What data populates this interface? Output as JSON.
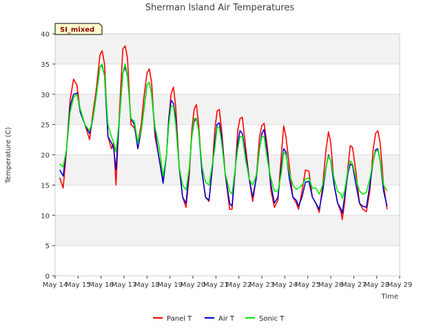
{
  "chart_data": {
    "type": "line",
    "title": "Sherman Island Air Temperatures",
    "xlabel": "Time",
    "ylabel": "Temperature (C)",
    "badge": "SI_mixed",
    "x_tick_labels": [
      "May 14",
      "May 15",
      "May 16",
      "May 17",
      "May 18",
      "May 19",
      "May 20",
      "May 21",
      "May 22",
      "May 23",
      "May 24",
      "May 25",
      "May 26",
      "May 27",
      "May 28",
      "May 29"
    ],
    "y_ticks": [
      0,
      5,
      10,
      15,
      20,
      25,
      30,
      35,
      40
    ],
    "xlim": [
      0,
      15
    ],
    "ylim": [
      0,
      40
    ],
    "grid": true,
    "legend_position": "bottom-center",
    "series": [
      {
        "name": "Panel T",
        "color": "#ff0000",
        "points": [
          [
            0.2,
            16.2
          ],
          [
            0.35,
            14.5
          ],
          [
            0.5,
            21
          ],
          [
            0.65,
            29
          ],
          [
            0.8,
            32.5
          ],
          [
            0.95,
            31.5
          ],
          [
            1.1,
            27
          ],
          [
            1.3,
            25
          ],
          [
            1.5,
            22.5
          ],
          [
            1.65,
            27
          ],
          [
            1.8,
            31
          ],
          [
            1.95,
            36.5
          ],
          [
            2.05,
            37.2
          ],
          [
            2.15,
            35
          ],
          [
            2.3,
            23
          ],
          [
            2.45,
            21
          ],
          [
            2.55,
            22
          ],
          [
            2.65,
            15
          ],
          [
            2.8,
            27
          ],
          [
            2.95,
            37.5
          ],
          [
            3.05,
            38
          ],
          [
            3.15,
            36
          ],
          [
            3.3,
            25
          ],
          [
            3.45,
            24.5
          ],
          [
            3.6,
            22
          ],
          [
            3.75,
            25
          ],
          [
            3.85,
            29
          ],
          [
            4.0,
            33.5
          ],
          [
            4.1,
            34.2
          ],
          [
            4.2,
            32
          ],
          [
            4.35,
            23
          ],
          [
            4.5,
            20
          ],
          [
            4.7,
            16
          ],
          [
            4.85,
            20
          ],
          [
            4.95,
            26
          ],
          [
            5.05,
            30
          ],
          [
            5.15,
            31.2
          ],
          [
            5.25,
            28
          ],
          [
            5.4,
            18
          ],
          [
            5.55,
            13
          ],
          [
            5.7,
            11.3
          ],
          [
            5.85,
            17
          ],
          [
            5.95,
            24
          ],
          [
            6.05,
            27.5
          ],
          [
            6.15,
            28.3
          ],
          [
            6.25,
            25
          ],
          [
            6.4,
            17
          ],
          [
            6.55,
            13
          ],
          [
            6.7,
            12.3
          ],
          [
            6.85,
            18
          ],
          [
            6.95,
            24
          ],
          [
            7.05,
            27.2
          ],
          [
            7.15,
            27.5
          ],
          [
            7.25,
            24
          ],
          [
            7.4,
            17
          ],
          [
            7.6,
            11
          ],
          [
            7.7,
            11
          ],
          [
            7.85,
            18
          ],
          [
            7.95,
            24
          ],
          [
            8.05,
            26
          ],
          [
            8.15,
            26.2
          ],
          [
            8.3,
            21
          ],
          [
            8.45,
            16
          ],
          [
            8.6,
            12.3
          ],
          [
            8.75,
            16
          ],
          [
            8.9,
            23
          ],
          [
            9.0,
            24.8
          ],
          [
            9.1,
            25.2
          ],
          [
            9.25,
            21
          ],
          [
            9.4,
            14
          ],
          [
            9.55,
            11.3
          ],
          [
            9.7,
            12.5
          ],
          [
            9.85,
            20
          ],
          [
            9.95,
            24.8
          ],
          [
            10.05,
            23
          ],
          [
            10.2,
            18
          ],
          [
            10.35,
            13
          ],
          [
            10.5,
            12
          ],
          [
            10.6,
            11
          ],
          [
            10.75,
            14
          ],
          [
            10.9,
            17.5
          ],
          [
            11.05,
            17.3
          ],
          [
            11.2,
            13
          ],
          [
            11.35,
            12
          ],
          [
            11.5,
            10.5
          ],
          [
            11.65,
            15
          ],
          [
            11.8,
            21
          ],
          [
            11.9,
            23.8
          ],
          [
            12.0,
            22
          ],
          [
            12.15,
            15
          ],
          [
            12.3,
            12
          ],
          [
            12.45,
            10.5
          ],
          [
            12.5,
            9.3
          ],
          [
            12.6,
            12
          ],
          [
            12.75,
            18
          ],
          [
            12.85,
            21.5
          ],
          [
            12.95,
            21.2
          ],
          [
            13.1,
            17
          ],
          [
            13.25,
            12
          ],
          [
            13.4,
            11
          ],
          [
            13.55,
            10.6
          ],
          [
            13.7,
            14
          ],
          [
            13.85,
            21
          ],
          [
            13.95,
            23.5
          ],
          [
            14.05,
            24
          ],
          [
            14.15,
            22
          ],
          [
            14.3,
            15
          ],
          [
            14.45,
            11
          ]
        ]
      },
      {
        "name": "Air T",
        "color": "#0000cc",
        "points": [
          [
            0.2,
            17.5
          ],
          [
            0.35,
            16.5
          ],
          [
            0.5,
            21
          ],
          [
            0.65,
            28
          ],
          [
            0.8,
            30
          ],
          [
            0.95,
            30.2
          ],
          [
            1.1,
            27
          ],
          [
            1.3,
            25
          ],
          [
            1.5,
            23.5
          ],
          [
            1.65,
            26
          ],
          [
            1.8,
            30
          ],
          [
            1.95,
            34.5
          ],
          [
            2.05,
            34.8
          ],
          [
            2.15,
            33
          ],
          [
            2.3,
            23
          ],
          [
            2.45,
            22
          ],
          [
            2.55,
            21
          ],
          [
            2.65,
            17.5
          ],
          [
            2.8,
            26
          ],
          [
            2.95,
            33.5
          ],
          [
            3.05,
            34.5
          ],
          [
            3.15,
            33
          ],
          [
            3.3,
            26
          ],
          [
            3.45,
            25
          ],
          [
            3.6,
            21
          ],
          [
            3.75,
            24
          ],
          [
            3.85,
            27
          ],
          [
            4.0,
            31.5
          ],
          [
            4.1,
            32
          ],
          [
            4.2,
            30
          ],
          [
            4.35,
            24
          ],
          [
            4.5,
            20
          ],
          [
            4.7,
            15.3
          ],
          [
            4.85,
            20
          ],
          [
            4.95,
            26
          ],
          [
            5.05,
            29
          ],
          [
            5.15,
            28.5
          ],
          [
            5.25,
            26
          ],
          [
            5.4,
            18
          ],
          [
            5.55,
            13
          ],
          [
            5.7,
            12
          ],
          [
            5.85,
            18
          ],
          [
            5.95,
            23
          ],
          [
            6.05,
            25.5
          ],
          [
            6.15,
            26
          ],
          [
            6.25,
            24
          ],
          [
            6.4,
            17
          ],
          [
            6.55,
            13
          ],
          [
            6.7,
            12.5
          ],
          [
            6.85,
            18
          ],
          [
            6.95,
            22
          ],
          [
            7.05,
            25
          ],
          [
            7.15,
            25.3
          ],
          [
            7.25,
            23
          ],
          [
            7.4,
            17
          ],
          [
            7.6,
            12
          ],
          [
            7.7,
            11.5
          ],
          [
            7.85,
            18
          ],
          [
            7.95,
            22
          ],
          [
            8.05,
            24
          ],
          [
            8.15,
            23.5
          ],
          [
            8.3,
            20
          ],
          [
            8.45,
            16
          ],
          [
            8.6,
            13
          ],
          [
            8.75,
            16
          ],
          [
            8.9,
            21
          ],
          [
            9.0,
            23.5
          ],
          [
            9.1,
            24.2
          ],
          [
            9.25,
            20
          ],
          [
            9.4,
            15
          ],
          [
            9.55,
            12
          ],
          [
            9.7,
            13
          ],
          [
            9.85,
            18
          ],
          [
            9.95,
            21
          ],
          [
            10.05,
            20.5
          ],
          [
            10.2,
            16
          ],
          [
            10.35,
            13
          ],
          [
            10.5,
            12.5
          ],
          [
            10.6,
            11.5
          ],
          [
            10.75,
            13
          ],
          [
            10.9,
            15.5
          ],
          [
            11.05,
            15.6
          ],
          [
            11.2,
            13
          ],
          [
            11.35,
            12
          ],
          [
            11.5,
            11
          ],
          [
            11.65,
            14
          ],
          [
            11.8,
            18
          ],
          [
            11.9,
            20
          ],
          [
            12.0,
            19
          ],
          [
            12.15,
            15
          ],
          [
            12.3,
            12
          ],
          [
            12.45,
            11
          ],
          [
            12.5,
            10.3
          ],
          [
            12.6,
            13
          ],
          [
            12.75,
            17
          ],
          [
            12.85,
            18.5
          ],
          [
            12.95,
            18.2
          ],
          [
            13.1,
            15
          ],
          [
            13.25,
            12
          ],
          [
            13.4,
            11.5
          ],
          [
            13.55,
            11.3
          ],
          [
            13.7,
            15
          ],
          [
            13.85,
            19
          ],
          [
            13.95,
            20.8
          ],
          [
            14.05,
            21
          ],
          [
            14.15,
            19
          ],
          [
            14.3,
            14
          ],
          [
            14.45,
            11.5
          ]
        ]
      },
      {
        "name": "Sonic T",
        "color": "#00ee00",
        "points": [
          [
            0.2,
            18.5
          ],
          [
            0.35,
            18
          ],
          [
            0.5,
            21
          ],
          [
            0.65,
            27
          ],
          [
            0.8,
            29.5
          ],
          [
            0.95,
            30
          ],
          [
            1.1,
            27.5
          ],
          [
            1.3,
            25
          ],
          [
            1.5,
            24
          ],
          [
            1.65,
            26
          ],
          [
            1.8,
            30
          ],
          [
            1.95,
            34.5
          ],
          [
            2.05,
            35
          ],
          [
            2.15,
            33
          ],
          [
            2.3,
            25
          ],
          [
            2.45,
            23
          ],
          [
            2.55,
            22
          ],
          [
            2.65,
            20.5
          ],
          [
            2.8,
            26
          ],
          [
            2.95,
            33.5
          ],
          [
            3.05,
            35
          ],
          [
            3.15,
            33
          ],
          [
            3.3,
            26
          ],
          [
            3.45,
            25.5
          ],
          [
            3.6,
            22
          ],
          [
            3.75,
            24
          ],
          [
            3.85,
            27
          ],
          [
            4.0,
            31.5
          ],
          [
            4.1,
            32
          ],
          [
            4.2,
            30
          ],
          [
            4.35,
            24.5
          ],
          [
            4.5,
            22
          ],
          [
            4.7,
            16.5
          ],
          [
            4.85,
            20
          ],
          [
            4.95,
            25
          ],
          [
            5.05,
            28
          ],
          [
            5.15,
            28
          ],
          [
            5.25,
            25
          ],
          [
            5.4,
            18
          ],
          [
            5.55,
            15
          ],
          [
            5.7,
            14.2
          ],
          [
            5.85,
            18
          ],
          [
            5.95,
            23
          ],
          [
            6.05,
            26
          ],
          [
            6.15,
            26
          ],
          [
            6.25,
            24
          ],
          [
            6.4,
            18
          ],
          [
            6.55,
            15.5
          ],
          [
            6.7,
            15
          ],
          [
            6.85,
            18.5
          ],
          [
            6.95,
            21
          ],
          [
            7.05,
            24.5
          ],
          [
            7.15,
            24.5
          ],
          [
            7.25,
            22
          ],
          [
            7.4,
            17
          ],
          [
            7.6,
            14
          ],
          [
            7.7,
            13.5
          ],
          [
            7.85,
            18
          ],
          [
            7.95,
            21
          ],
          [
            8.05,
            23
          ],
          [
            8.15,
            23
          ],
          [
            8.3,
            19
          ],
          [
            8.45,
            16
          ],
          [
            8.6,
            15
          ],
          [
            8.75,
            16.5
          ],
          [
            8.9,
            21
          ],
          [
            9.0,
            23
          ],
          [
            9.1,
            23
          ],
          [
            9.25,
            19
          ],
          [
            9.4,
            16
          ],
          [
            9.55,
            14
          ],
          [
            9.7,
            14
          ],
          [
            9.85,
            17
          ],
          [
            9.95,
            20.5
          ],
          [
            10.05,
            20
          ],
          [
            10.2,
            17
          ],
          [
            10.35,
            15
          ],
          [
            10.5,
            14.3
          ],
          [
            10.6,
            14.5
          ],
          [
            10.75,
            15
          ],
          [
            10.9,
            16
          ],
          [
            11.05,
            16.2
          ],
          [
            11.2,
            14.5
          ],
          [
            11.35,
            14.5
          ],
          [
            11.5,
            13.5
          ],
          [
            11.65,
            15
          ],
          [
            11.8,
            18
          ],
          [
            11.9,
            19.8
          ],
          [
            12.0,
            19
          ],
          [
            12.15,
            16
          ],
          [
            12.3,
            14
          ],
          [
            12.45,
            13.5
          ],
          [
            12.5,
            12.8
          ],
          [
            12.6,
            14
          ],
          [
            12.75,
            17.5
          ],
          [
            12.85,
            19
          ],
          [
            12.95,
            18.5
          ],
          [
            13.1,
            16
          ],
          [
            13.25,
            14
          ],
          [
            13.4,
            13.5
          ],
          [
            13.55,
            13.8
          ],
          [
            13.7,
            16
          ],
          [
            13.85,
            19
          ],
          [
            13.95,
            20.5
          ],
          [
            14.05,
            20.8
          ],
          [
            14.15,
            19
          ],
          [
            14.3,
            15
          ],
          [
            14.45,
            14
          ]
        ]
      }
    ]
  }
}
